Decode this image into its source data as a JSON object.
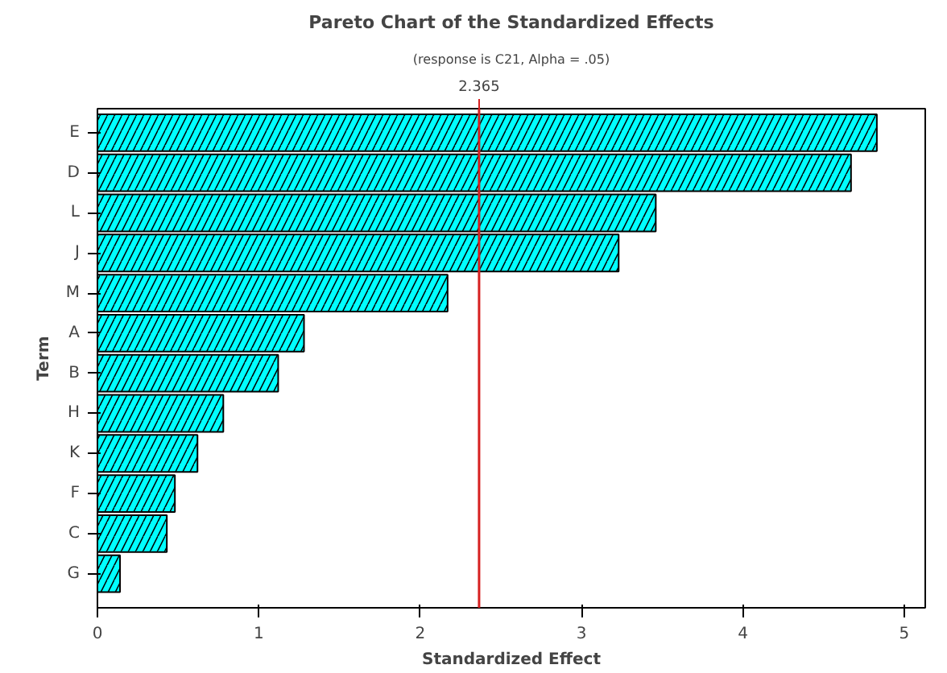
{
  "chart_data": {
    "type": "bar",
    "orientation": "horizontal",
    "title": "Pareto Chart of the Standardized Effects",
    "subtitle": "(response is C21, Alpha = .05)",
    "xlabel": "Standardized Effect",
    "ylabel": "Term",
    "categories": [
      "E",
      "D",
      "L",
      "J",
      "M",
      "A",
      "B",
      "H",
      "K",
      "F",
      "C",
      "G"
    ],
    "values": [
      4.83,
      4.67,
      3.46,
      3.23,
      2.17,
      1.28,
      1.12,
      0.78,
      0.62,
      0.48,
      0.43,
      0.14
    ],
    "color": "#00ffff",
    "xlim": [
      0,
      5.13
    ],
    "xticks": [
      0,
      1,
      2,
      3,
      4,
      5
    ],
    "grid": false,
    "ref_lines": [
      {
        "axis": "x",
        "value": 2.365,
        "label": "2.365",
        "color": "#d62020"
      }
    ]
  }
}
